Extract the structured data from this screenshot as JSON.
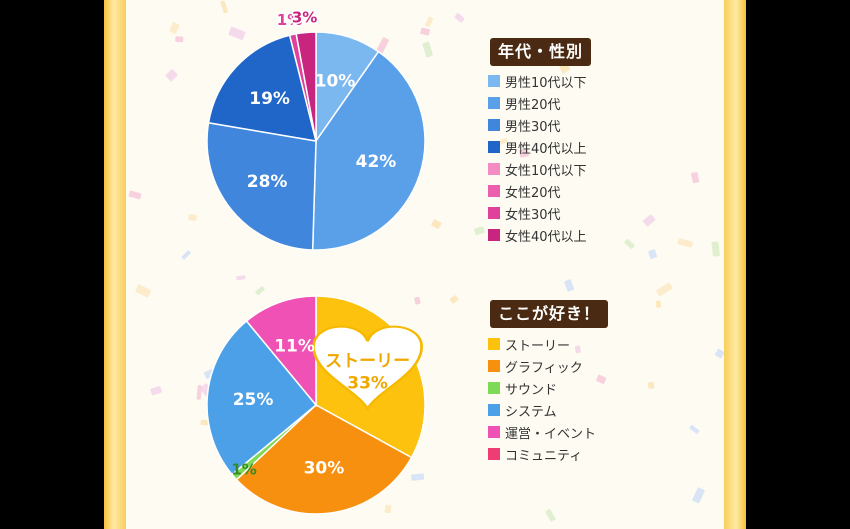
{
  "chart_data": [
    {
      "type": "pie",
      "title": "年代・性別",
      "series": [
        {
          "name": "男性10代以下",
          "value": 10,
          "label": "10%",
          "color": "#7cb8f0"
        },
        {
          "name": "男性20代",
          "value": 42,
          "label": "42%",
          "color": "#5aa0e8"
        },
        {
          "name": "男性30代",
          "value": 28,
          "label": "28%",
          "color": "#3f86dc"
        },
        {
          "name": "男性40代以上",
          "value": 19,
          "label": "19%",
          "color": "#1f66c8"
        },
        {
          "name": "女性10代以下",
          "value": 0,
          "label": "",
          "color": "#f48cc4"
        },
        {
          "name": "女性20代",
          "value": 0,
          "label": "",
          "color": "#ec5fae"
        },
        {
          "name": "女性30代",
          "value": 1,
          "label": "1%",
          "color": "#e0419b"
        },
        {
          "name": "女性40代以上",
          "value": 3,
          "label": "3%",
          "color": "#c8267e"
        }
      ],
      "legend_position": "right"
    },
    {
      "type": "pie",
      "title": "ここが好き！",
      "series": [
        {
          "name": "ストーリー",
          "value": 33,
          "label": "33%",
          "color": "#fcc20e"
        },
        {
          "name": "グラフィック",
          "value": 30,
          "label": "30%",
          "color": "#f8900f"
        },
        {
          "name": "サウンド",
          "value": 1,
          "label": "1%",
          "color": "#7ed957"
        },
        {
          "name": "システム",
          "value": 25,
          "label": "25%",
          "color": "#4ba0e8"
        },
        {
          "name": "運営・イベント",
          "value": 11,
          "label": "11%",
          "color": "#ef52b4"
        },
        {
          "name": "コミュニティ",
          "value": 0,
          "label": "",
          "color": "#ee3c74"
        }
      ],
      "legend_position": "right"
    }
  ]
}
